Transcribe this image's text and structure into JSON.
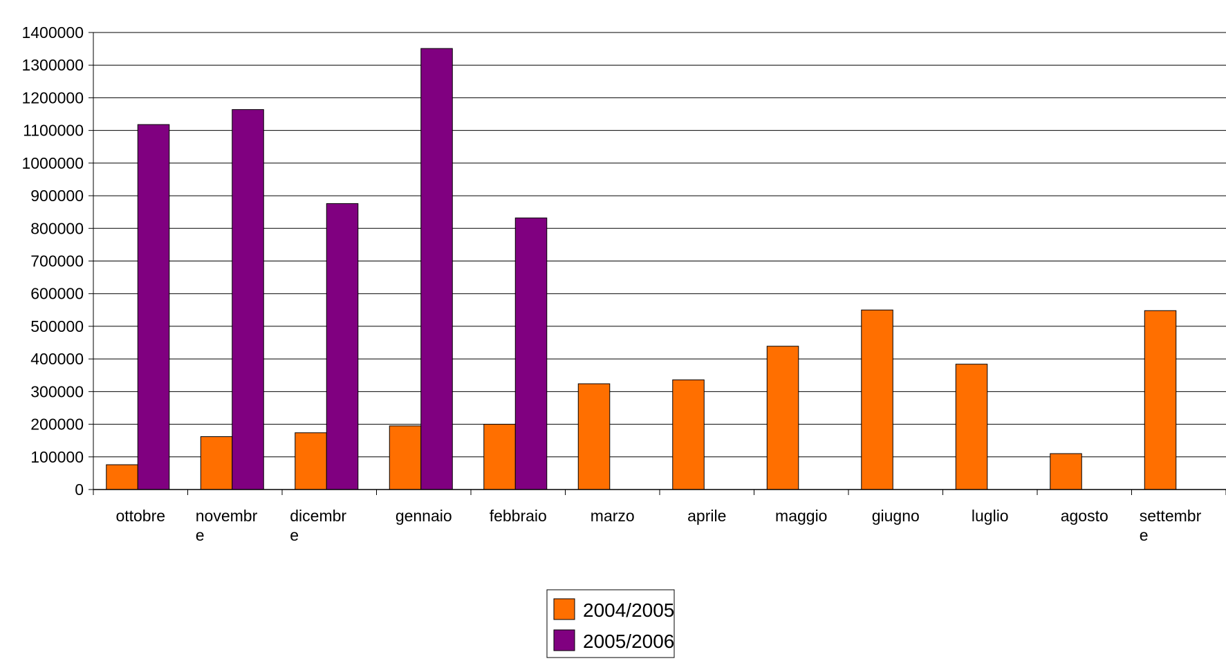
{
  "chart_data": {
    "type": "bar",
    "title": "",
    "xlabel": "",
    "ylabel": "",
    "categories": [
      [
        "ottobre"
      ],
      [
        "novembr",
        "e"
      ],
      [
        "dicembr",
        "e"
      ],
      [
        "gennaio"
      ],
      [
        "febbraio"
      ],
      [
        "marzo"
      ],
      [
        "aprile"
      ],
      [
        "maggio"
      ],
      [
        "giugno"
      ],
      [
        "luglio"
      ],
      [
        "agosto"
      ],
      [
        "settembr",
        "e"
      ]
    ],
    "series": [
      {
        "name": "2004/2005",
        "color": "#FF6F00",
        "values": [
          76000,
          162000,
          174000,
          195000,
          200000,
          324000,
          336000,
          439000,
          550000,
          384000,
          110000,
          548000
        ]
      },
      {
        "name": "2005/2006",
        "color": "#800080",
        "values": [
          1118000,
          1164000,
          876000,
          1351000,
          832000,
          0,
          0,
          0,
          0,
          0,
          0,
          0
        ]
      }
    ],
    "ylim": [
      0,
      1400000
    ],
    "yticks": [
      "0",
      "100000",
      "200000",
      "300000",
      "400000",
      "500000",
      "600000",
      "700000",
      "800000",
      "900000",
      "1000000",
      "1100000",
      "1200000",
      "1300000",
      "1400000"
    ],
    "grid": true,
    "legend_position": "bottom"
  }
}
